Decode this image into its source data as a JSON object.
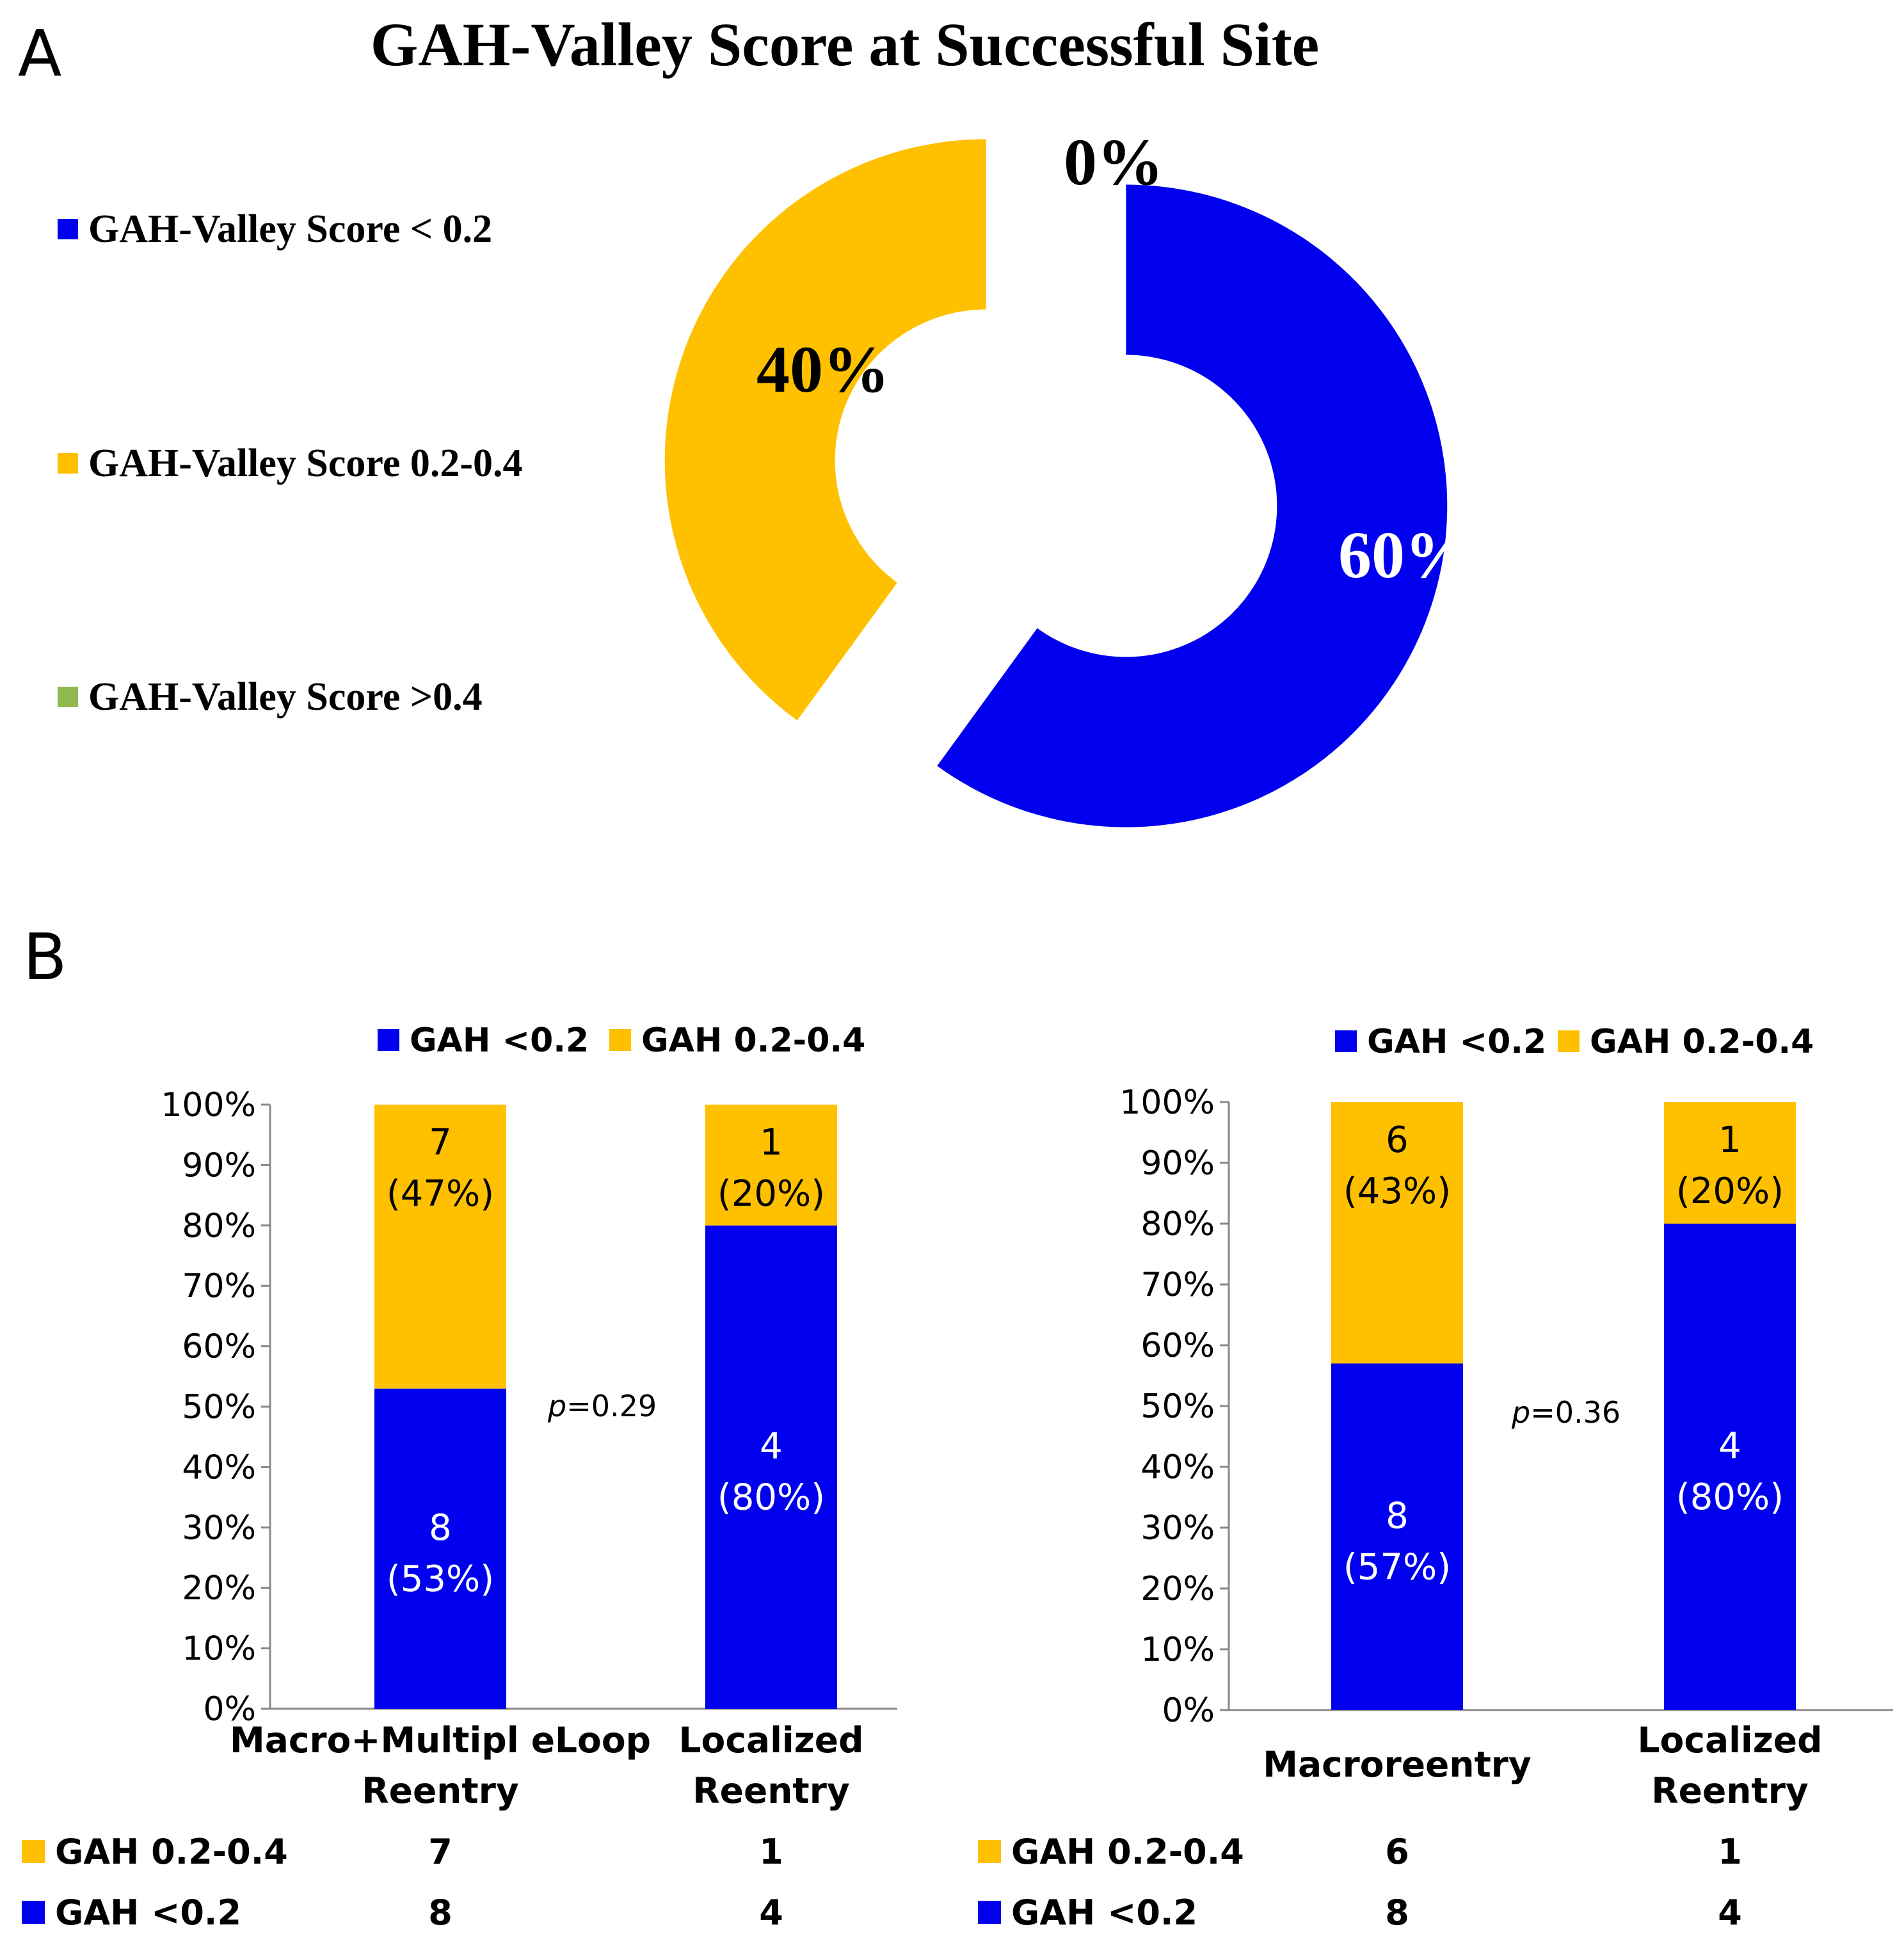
{
  "panel_a": {
    "letter": "A",
    "title": "GAH-Valley Score at Successful Site",
    "legend": [
      {
        "label": "GAH-Valley Score < 0.2",
        "color": "#0000EE"
      },
      {
        "label": "GAH-Valley Score 0.2-0.4",
        "color": "#FFC000"
      },
      {
        "label": "GAH-Valley Score >0.4",
        "color": "#92B94F"
      }
    ],
    "slice_labels": [
      "60%",
      "40%",
      "0%"
    ]
  },
  "panel_b": {
    "letter": "B",
    "left": {
      "legend": [
        "GAH <0.2",
        "GAH 0.2-0.4"
      ],
      "pvalue": "=0.29",
      "categories": [
        "Macro+Multipl eLoop Reentry",
        "Localized Reentry"
      ],
      "seg_labels": [
        {
          "low_count": "8",
          "low_pct": "(53%)",
          "high_count": "7",
          "high_pct": "(47%)"
        },
        {
          "low_count": "4",
          "low_pct": "(80%)",
          "high_count": "1",
          "high_pct": "(20%)"
        }
      ],
      "table": [
        {
          "label": "GAH 0.2-0.4",
          "values": [
            "7",
            "1"
          ]
        },
        {
          "label": "GAH <0.2",
          "values": [
            "8",
            "4"
          ]
        }
      ]
    },
    "right": {
      "legend": [
        "GAH <0.2",
        "GAH 0.2-0.4"
      ],
      "pvalue": "=0.36",
      "categories": [
        "Macroreentry",
        "Localized Reentry"
      ],
      "seg_labels": [
        {
          "low_count": "8",
          "low_pct": "(57%)",
          "high_count": "6",
          "high_pct": "(43%)"
        },
        {
          "low_count": "4",
          "low_pct": "(80%)",
          "high_count": "1",
          "high_pct": "(20%)"
        }
      ],
      "table": [
        {
          "label": "GAH 0.2-0.4",
          "values": [
            "6",
            "1"
          ]
        },
        {
          "label": "GAH <0.2",
          "values": [
            "8",
            "4"
          ]
        }
      ]
    },
    "pvalue_symbol": "p",
    "y_ticks": [
      "0%",
      "10%",
      "20%",
      "30%",
      "40%",
      "50%",
      "60%",
      "70%",
      "80%",
      "90%",
      "100%"
    ]
  },
  "chart_data": [
    {
      "type": "pie",
      "title": "GAH-Valley Score at Successful Site",
      "categories": [
        "GAH-Valley Score < 0.2",
        "GAH-Valley Score 0.2-0.4",
        "GAH-Valley Score >0.4"
      ],
      "values": [
        60,
        40,
        0
      ],
      "colors": [
        "#0000EE",
        "#FFC000",
        "#92B94F"
      ],
      "legend_position": "left",
      "donut": true
    },
    {
      "type": "bar",
      "stacked": true,
      "normalized": true,
      "categories": [
        "Macro+Multipl eLoop Reentry",
        "Localized Reentry"
      ],
      "series": [
        {
          "name": "GAH <0.2",
          "values": [
            8,
            4
          ],
          "percent": [
            53,
            80
          ],
          "color": "#0000EE"
        },
        {
          "name": "GAH 0.2-0.4",
          "values": [
            7,
            1
          ],
          "percent": [
            47,
            20
          ],
          "color": "#FFC000"
        }
      ],
      "ylim": [
        0,
        100
      ],
      "yticks": [
        "0%",
        "10%",
        "20%",
        "30%",
        "40%",
        "50%",
        "60%",
        "70%",
        "80%",
        "90%",
        "100%"
      ],
      "annotation": "p=0.29",
      "legend_position": "top",
      "grid": false
    },
    {
      "type": "bar",
      "stacked": true,
      "normalized": true,
      "categories": [
        "Macroreentry",
        "Localized Reentry"
      ],
      "series": [
        {
          "name": "GAH <0.2",
          "values": [
            8,
            4
          ],
          "percent": [
            57,
            80
          ],
          "color": "#0000EE"
        },
        {
          "name": "GAH 0.2-0.4",
          "values": [
            6,
            1
          ],
          "percent": [
            43,
            20
          ],
          "color": "#FFC000"
        }
      ],
      "ylim": [
        0,
        100
      ],
      "yticks": [
        "0%",
        "10%",
        "20%",
        "30%",
        "40%",
        "50%",
        "60%",
        "70%",
        "80%",
        "90%",
        "100%"
      ],
      "annotation": "p=0.36",
      "legend_position": "top",
      "grid": false
    }
  ]
}
